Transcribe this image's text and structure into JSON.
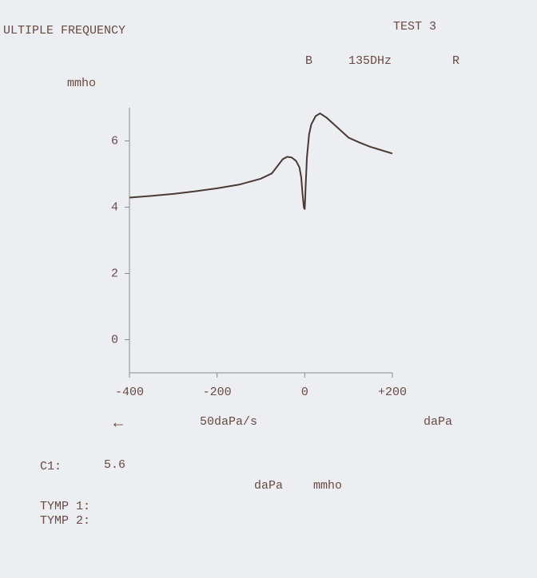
{
  "chart_data": {
    "type": "line",
    "title": "ULTIPLE FREQUENCY",
    "test": "TEST 3",
    "header_marks": [
      "B",
      "135DHz",
      "R"
    ],
    "y_label": "mmho",
    "x_label": "daPa",
    "speed_arrow": "←",
    "speed": "50daPa/s",
    "readout_label": "C1:",
    "readout_value": 5.6,
    "readout_units": [
      "daPa",
      "mmho"
    ],
    "tymp_labels": [
      "TYMP 1:",
      "TYMP 2:"
    ],
    "xlim": [
      -400,
      200
    ],
    "ylim": [
      -1,
      7
    ],
    "xticks": [
      -400,
      -200,
      0,
      {
        "value": 200,
        "label": "+200"
      }
    ],
    "yticks": [
      0,
      2,
      4,
      6
    ],
    "grid": false,
    "series": [
      {
        "name": "curve",
        "color": "#4a3a36",
        "x": [
          -400,
          -350,
          -300,
          -250,
          -200,
          -150,
          -100,
          -75,
          -50,
          -40,
          -30,
          -20,
          -12,
          -8,
          -5,
          -2,
          0,
          2,
          5,
          10,
          15,
          25,
          35,
          50,
          75,
          100,
          125,
          150,
          175,
          200
        ],
        "values": [
          4.29,
          4.34,
          4.4,
          4.48,
          4.57,
          4.68,
          4.86,
          5.02,
          5.45,
          5.52,
          5.5,
          5.4,
          5.2,
          4.9,
          4.4,
          4.0,
          3.93,
          4.6,
          5.5,
          6.2,
          6.5,
          6.75,
          6.83,
          6.7,
          6.4,
          6.1,
          5.95,
          5.82,
          5.72,
          5.62
        ]
      }
    ]
  }
}
